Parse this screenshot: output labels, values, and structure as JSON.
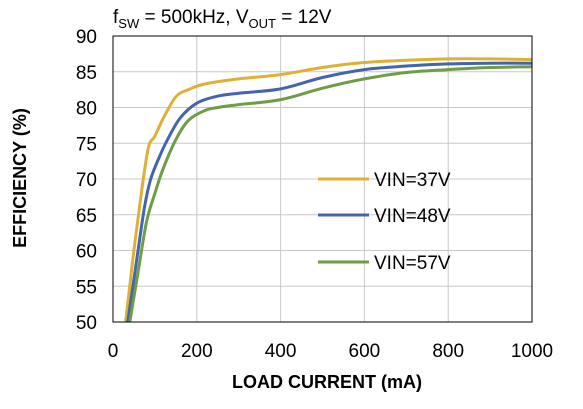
{
  "chart_data": {
    "type": "line",
    "title": {
      "f": "f",
      "f_sub": "SW",
      "mid": " = 500kHz, V",
      "v_sub": "OUT",
      "end": " = 12V"
    },
    "xlabel": "LOAD CURRENT (mA)",
    "ylabel": "EFFICIENCY (%)",
    "xlim": [
      0,
      1000
    ],
    "ylim": [
      50,
      90
    ],
    "x_ticks": [
      "0",
      "200",
      "400",
      "600",
      "800",
      "1000"
    ],
    "y_ticks": [
      "50",
      "55",
      "60",
      "65",
      "70",
      "75",
      "80",
      "85",
      "90"
    ],
    "grid": true,
    "legend_position": "center-right",
    "series": [
      {
        "name": "VIN=37V",
        "color": "#DDB135",
        "points": [
          [
            30,
            50
          ],
          [
            50,
            60
          ],
          [
            70,
            69
          ],
          [
            85,
            74.5
          ],
          [
            100,
            76
          ],
          [
            120,
            78.5
          ],
          [
            150,
            81.5
          ],
          [
            180,
            82.5
          ],
          [
            220,
            83.3
          ],
          [
            300,
            84
          ],
          [
            400,
            84.6
          ],
          [
            500,
            85.6
          ],
          [
            600,
            86.3
          ],
          [
            700,
            86.6
          ],
          [
            800,
            86.8
          ],
          [
            900,
            86.8
          ],
          [
            1000,
            86.7
          ]
        ]
      },
      {
        "name": "VIN=48V",
        "color": "#4464AC",
        "points": [
          [
            35,
            50
          ],
          [
            55,
            58
          ],
          [
            75,
            66
          ],
          [
            90,
            70
          ],
          [
            110,
            73
          ],
          [
            130,
            75.5
          ],
          [
            160,
            78.5
          ],
          [
            200,
            80.6
          ],
          [
            250,
            81.6
          ],
          [
            300,
            82
          ],
          [
            400,
            82.6
          ],
          [
            500,
            84.2
          ],
          [
            600,
            85.3
          ],
          [
            700,
            85.8
          ],
          [
            800,
            86.1
          ],
          [
            900,
            86.2
          ],
          [
            1000,
            86.2
          ]
        ]
      },
      {
        "name": "VIN=57V",
        "color": "#6F9C47",
        "points": [
          [
            40,
            50
          ],
          [
            60,
            57
          ],
          [
            80,
            64
          ],
          [
            100,
            68
          ],
          [
            120,
            71.5
          ],
          [
            150,
            75.5
          ],
          [
            180,
            78.2
          ],
          [
            220,
            79.6
          ],
          [
            250,
            80
          ],
          [
            300,
            80.4
          ],
          [
            400,
            81.1
          ],
          [
            500,
            82.7
          ],
          [
            600,
            84
          ],
          [
            700,
            84.9
          ],
          [
            800,
            85.3
          ],
          [
            900,
            85.6
          ],
          [
            1000,
            85.7
          ]
        ]
      }
    ]
  }
}
